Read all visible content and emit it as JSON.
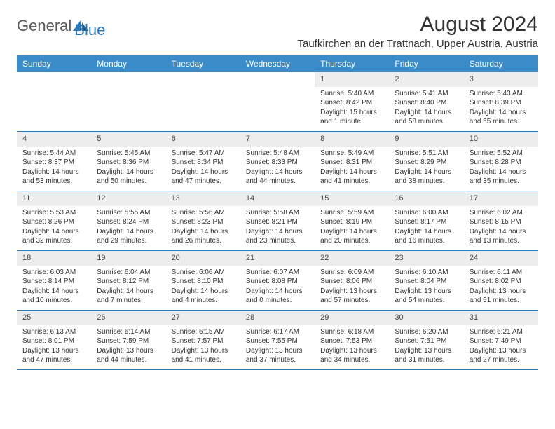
{
  "logo": {
    "text_gray": "General",
    "text_blue": "Blue",
    "accent_color": "#2a7ab8",
    "gray_color": "#5a5a5a"
  },
  "header": {
    "month_title": "August 2024",
    "location": "Taufkirchen an der Trattnach, Upper Austria, Austria"
  },
  "colors": {
    "header_bg": "#3b8bc8",
    "header_text": "#ffffff",
    "daynum_bg": "#ededed",
    "border": "#2a7ab8",
    "body_text": "#333333",
    "page_bg": "#ffffff"
  },
  "day_names": [
    "Sunday",
    "Monday",
    "Tuesday",
    "Wednesday",
    "Thursday",
    "Friday",
    "Saturday"
  ],
  "weeks": [
    [
      {
        "empty": true
      },
      {
        "empty": true
      },
      {
        "empty": true
      },
      {
        "empty": true
      },
      {
        "n": "1",
        "sr": "Sunrise: 5:40 AM",
        "ss": "Sunset: 8:42 PM",
        "d1": "Daylight: 15 hours",
        "d2": "and 1 minute."
      },
      {
        "n": "2",
        "sr": "Sunrise: 5:41 AM",
        "ss": "Sunset: 8:40 PM",
        "d1": "Daylight: 14 hours",
        "d2": "and 58 minutes."
      },
      {
        "n": "3",
        "sr": "Sunrise: 5:43 AM",
        "ss": "Sunset: 8:39 PM",
        "d1": "Daylight: 14 hours",
        "d2": "and 55 minutes."
      }
    ],
    [
      {
        "n": "4",
        "sr": "Sunrise: 5:44 AM",
        "ss": "Sunset: 8:37 PM",
        "d1": "Daylight: 14 hours",
        "d2": "and 53 minutes."
      },
      {
        "n": "5",
        "sr": "Sunrise: 5:45 AM",
        "ss": "Sunset: 8:36 PM",
        "d1": "Daylight: 14 hours",
        "d2": "and 50 minutes."
      },
      {
        "n": "6",
        "sr": "Sunrise: 5:47 AM",
        "ss": "Sunset: 8:34 PM",
        "d1": "Daylight: 14 hours",
        "d2": "and 47 minutes."
      },
      {
        "n": "7",
        "sr": "Sunrise: 5:48 AM",
        "ss": "Sunset: 8:33 PM",
        "d1": "Daylight: 14 hours",
        "d2": "and 44 minutes."
      },
      {
        "n": "8",
        "sr": "Sunrise: 5:49 AM",
        "ss": "Sunset: 8:31 PM",
        "d1": "Daylight: 14 hours",
        "d2": "and 41 minutes."
      },
      {
        "n": "9",
        "sr": "Sunrise: 5:51 AM",
        "ss": "Sunset: 8:29 PM",
        "d1": "Daylight: 14 hours",
        "d2": "and 38 minutes."
      },
      {
        "n": "10",
        "sr": "Sunrise: 5:52 AM",
        "ss": "Sunset: 8:28 PM",
        "d1": "Daylight: 14 hours",
        "d2": "and 35 minutes."
      }
    ],
    [
      {
        "n": "11",
        "sr": "Sunrise: 5:53 AM",
        "ss": "Sunset: 8:26 PM",
        "d1": "Daylight: 14 hours",
        "d2": "and 32 minutes."
      },
      {
        "n": "12",
        "sr": "Sunrise: 5:55 AM",
        "ss": "Sunset: 8:24 PM",
        "d1": "Daylight: 14 hours",
        "d2": "and 29 minutes."
      },
      {
        "n": "13",
        "sr": "Sunrise: 5:56 AM",
        "ss": "Sunset: 8:23 PM",
        "d1": "Daylight: 14 hours",
        "d2": "and 26 minutes."
      },
      {
        "n": "14",
        "sr": "Sunrise: 5:58 AM",
        "ss": "Sunset: 8:21 PM",
        "d1": "Daylight: 14 hours",
        "d2": "and 23 minutes."
      },
      {
        "n": "15",
        "sr": "Sunrise: 5:59 AM",
        "ss": "Sunset: 8:19 PM",
        "d1": "Daylight: 14 hours",
        "d2": "and 20 minutes."
      },
      {
        "n": "16",
        "sr": "Sunrise: 6:00 AM",
        "ss": "Sunset: 8:17 PM",
        "d1": "Daylight: 14 hours",
        "d2": "and 16 minutes."
      },
      {
        "n": "17",
        "sr": "Sunrise: 6:02 AM",
        "ss": "Sunset: 8:15 PM",
        "d1": "Daylight: 14 hours",
        "d2": "and 13 minutes."
      }
    ],
    [
      {
        "n": "18",
        "sr": "Sunrise: 6:03 AM",
        "ss": "Sunset: 8:14 PM",
        "d1": "Daylight: 14 hours",
        "d2": "and 10 minutes."
      },
      {
        "n": "19",
        "sr": "Sunrise: 6:04 AM",
        "ss": "Sunset: 8:12 PM",
        "d1": "Daylight: 14 hours",
        "d2": "and 7 minutes."
      },
      {
        "n": "20",
        "sr": "Sunrise: 6:06 AM",
        "ss": "Sunset: 8:10 PM",
        "d1": "Daylight: 14 hours",
        "d2": "and 4 minutes."
      },
      {
        "n": "21",
        "sr": "Sunrise: 6:07 AM",
        "ss": "Sunset: 8:08 PM",
        "d1": "Daylight: 14 hours",
        "d2": "and 0 minutes."
      },
      {
        "n": "22",
        "sr": "Sunrise: 6:09 AM",
        "ss": "Sunset: 8:06 PM",
        "d1": "Daylight: 13 hours",
        "d2": "and 57 minutes."
      },
      {
        "n": "23",
        "sr": "Sunrise: 6:10 AM",
        "ss": "Sunset: 8:04 PM",
        "d1": "Daylight: 13 hours",
        "d2": "and 54 minutes."
      },
      {
        "n": "24",
        "sr": "Sunrise: 6:11 AM",
        "ss": "Sunset: 8:02 PM",
        "d1": "Daylight: 13 hours",
        "d2": "and 51 minutes."
      }
    ],
    [
      {
        "n": "25",
        "sr": "Sunrise: 6:13 AM",
        "ss": "Sunset: 8:01 PM",
        "d1": "Daylight: 13 hours",
        "d2": "and 47 minutes."
      },
      {
        "n": "26",
        "sr": "Sunrise: 6:14 AM",
        "ss": "Sunset: 7:59 PM",
        "d1": "Daylight: 13 hours",
        "d2": "and 44 minutes."
      },
      {
        "n": "27",
        "sr": "Sunrise: 6:15 AM",
        "ss": "Sunset: 7:57 PM",
        "d1": "Daylight: 13 hours",
        "d2": "and 41 minutes."
      },
      {
        "n": "28",
        "sr": "Sunrise: 6:17 AM",
        "ss": "Sunset: 7:55 PM",
        "d1": "Daylight: 13 hours",
        "d2": "and 37 minutes."
      },
      {
        "n": "29",
        "sr": "Sunrise: 6:18 AM",
        "ss": "Sunset: 7:53 PM",
        "d1": "Daylight: 13 hours",
        "d2": "and 34 minutes."
      },
      {
        "n": "30",
        "sr": "Sunrise: 6:20 AM",
        "ss": "Sunset: 7:51 PM",
        "d1": "Daylight: 13 hours",
        "d2": "and 31 minutes."
      },
      {
        "n": "31",
        "sr": "Sunrise: 6:21 AM",
        "ss": "Sunset: 7:49 PM",
        "d1": "Daylight: 13 hours",
        "d2": "and 27 minutes."
      }
    ]
  ]
}
